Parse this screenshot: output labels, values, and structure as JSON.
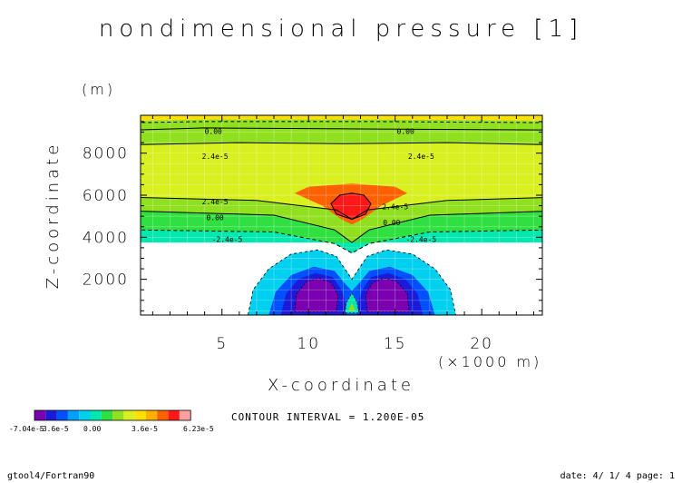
{
  "chart_data": {
    "type": "contour",
    "title": "nondimensional pressure [1]",
    "xlabel": "X-coordinate",
    "ylabel": "Z-coordinate",
    "xunit": "(×1000 m)",
    "yunit": "(m)",
    "xlim": [
      0.3,
      23.5
    ],
    "ylim": [
      300,
      9800
    ],
    "xticks": [
      5,
      10,
      15,
      20
    ],
    "xtick_labels": [
      "5",
      "10",
      "15",
      "20"
    ],
    "yticks": [
      2000,
      4000,
      6000,
      8000
    ],
    "ytick_labels": [
      "2000",
      "4000",
      "6000",
      "8000"
    ],
    "grid": true,
    "contour_interval": 1.2e-05,
    "contour_interval_text": "CONTOUR INTERVAL = 1.200E-05",
    "levels_min": -7.04e-05,
    "levels_max": 6.23e-05,
    "colorbar_tick_labels": [
      "-7.04e-5",
      "-3.6e-5",
      "0.00",
      "3.6e-5",
      "6.23e-5"
    ],
    "colorbar_colors": [
      "#7a00b0",
      "#1a1ad8",
      "#0050ff",
      "#00a0ff",
      "#00d0f0",
      "#00e8b0",
      "#30e040",
      "#90e020",
      "#d8f020",
      "#ffe000",
      "#ffb000",
      "#ff6000",
      "#ff1818",
      "#ffa0a0"
    ],
    "contour_labels": [
      {
        "text": "0.00",
        "x": 4.5,
        "z": 9050
      },
      {
        "text": "0.00",
        "x": 15.6,
        "z": 9050
      },
      {
        "text": "2.4e-5",
        "x": 4.6,
        "z": 7850
      },
      {
        "text": "2.4e-5",
        "x": 16.5,
        "z": 7850
      },
      {
        "text": "2.4e-5",
        "x": 4.6,
        "z": 5700
      },
      {
        "text": "2.4e-5",
        "x": 15.0,
        "z": 5450
      },
      {
        "text": "0.00",
        "x": 4.6,
        "z": 4950
      },
      {
        "text": "0.00",
        "x": 14.8,
        "z": 4700
      },
      {
        "text": "-2.4e-5",
        "x": 5.3,
        "z": 3900
      },
      {
        "text": "-2.4e-5",
        "x": 16.5,
        "z": 3900
      }
    ]
  },
  "footer": {
    "left": "gtool4/Fortran90",
    "right": "date: 4/ 1/ 4 page: 1"
  }
}
